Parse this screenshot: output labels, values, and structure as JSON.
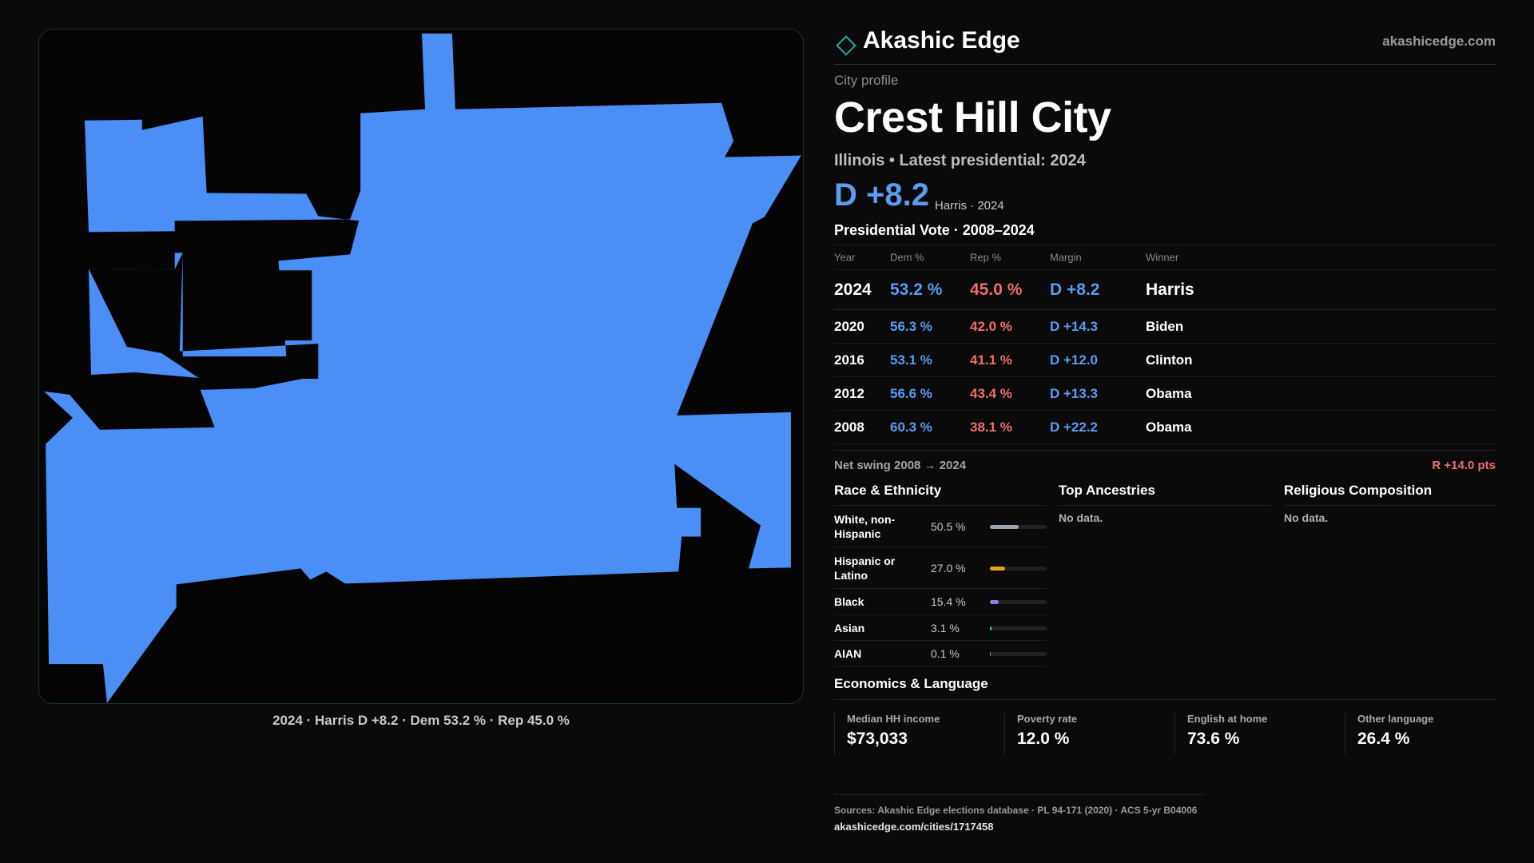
{
  "map": {
    "caption": "2024 · Harris D +8.2 · Dem 53.2 % · Rep 45.0 %",
    "fill_color": "#4a8ef6",
    "frame_color": "#173238"
  },
  "header": {
    "brand": "Akashic Edge",
    "site": "akashicedge.com",
    "logo_icon": "diamond-outline-icon"
  },
  "profile": {
    "eyebrow": "City profile",
    "name": "Crest Hill City",
    "subtitle": "Illinois • Latest presidential: 2024",
    "headline_margin": "D +8.2",
    "headline_detail": "Harris · 2024"
  },
  "vote": {
    "title": "Presidential Vote · 2008–2024",
    "headers": {
      "year": "Year",
      "dem": "Dem %",
      "rep": "Rep %",
      "margin": "Margin",
      "winner": "Winner"
    },
    "rows": [
      {
        "year": "2024",
        "dem": "53.2 %",
        "rep": "45.0 %",
        "margin": "D +8.2",
        "winner": "Harris"
      },
      {
        "year": "2020",
        "dem": "56.3 %",
        "rep": "42.0 %",
        "margin": "D +14.3",
        "winner": "Biden"
      },
      {
        "year": "2016",
        "dem": "53.1 %",
        "rep": "41.1 %",
        "margin": "D +12.0",
        "winner": "Clinton"
      },
      {
        "year": "2012",
        "dem": "56.6 %",
        "rep": "43.4 %",
        "margin": "D +13.3",
        "winner": "Obama"
      },
      {
        "year": "2008",
        "dem": "60.3 %",
        "rep": "38.1 %",
        "margin": "D +22.2",
        "winner": "Obama"
      }
    ],
    "swing_label": "Net swing 2008 → 2024",
    "swing_value": "R +14.0 pts"
  },
  "race": {
    "title": "Race & Ethnicity",
    "rows": [
      {
        "label": "White, non-Hispanic",
        "value": "50.5 %",
        "pct": 50.5,
        "color": "#9aa0ad"
      },
      {
        "label": "Hispanic or Latino",
        "value": "27.0 %",
        "pct": 27.0,
        "color": "#e3a21a"
      },
      {
        "label": "Black",
        "value": "15.4 %",
        "pct": 15.4,
        "color": "#9b7be0"
      },
      {
        "label": "Asian",
        "value": "3.1 %",
        "pct": 3.1,
        "color": "#2cc5a8"
      },
      {
        "label": "AIAN",
        "value": "0.1 %",
        "pct": 0.1,
        "color": "#e06b6b"
      }
    ]
  },
  "ancestries": {
    "title": "Top Ancestries",
    "empty": "No data."
  },
  "religion": {
    "title": "Religious Composition",
    "empty": "No data."
  },
  "economics": {
    "title": "Economics & Language",
    "stats": [
      {
        "label": "Median HH income",
        "value": "$73,033"
      },
      {
        "label": "Poverty rate",
        "value": "12.0 %"
      },
      {
        "label": "English at home",
        "value": "73.6 %"
      },
      {
        "label": "Other language",
        "value": "26.4 %"
      }
    ]
  },
  "footer": {
    "sources": "Sources: Akashic Edge elections database · PL 94-171 (2020) · ACS 5-yr B04006",
    "url": "akashicedge.com/cities/1717458"
  }
}
